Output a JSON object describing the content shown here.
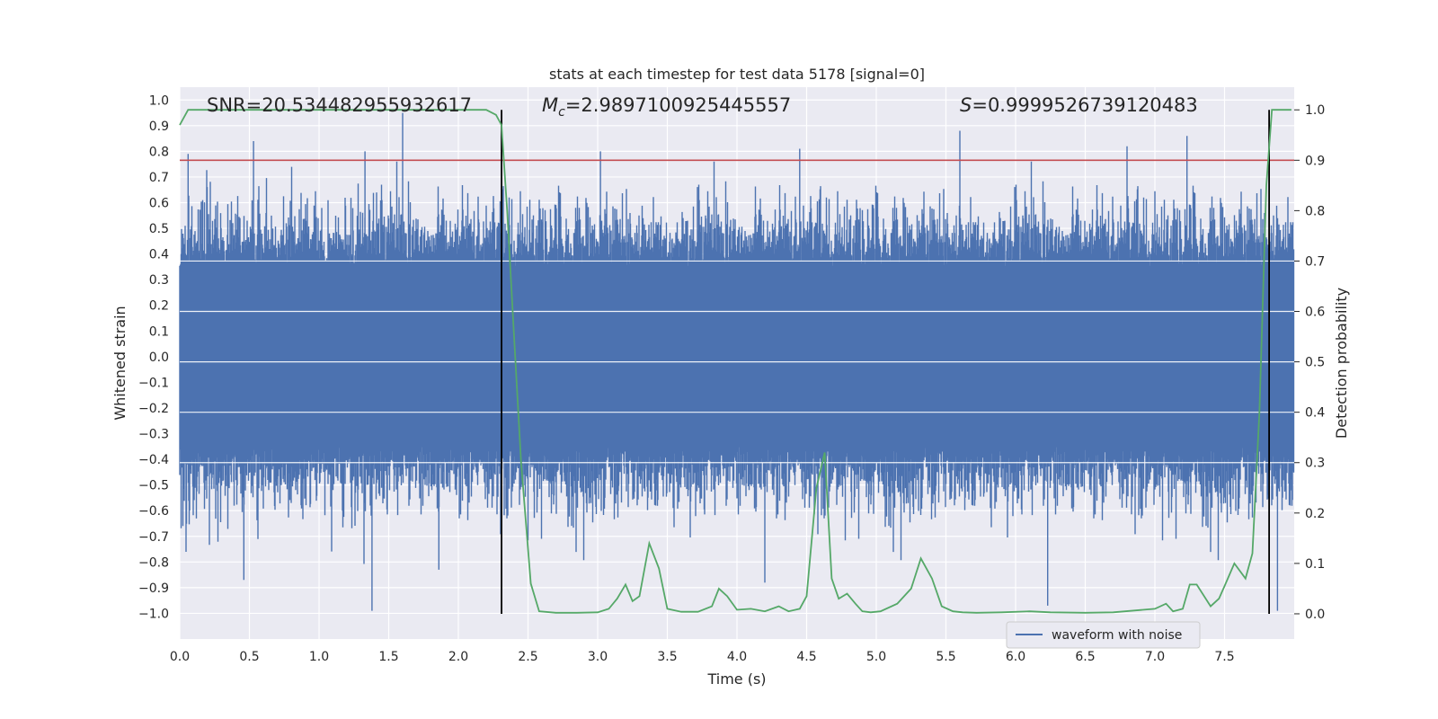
{
  "chart_data": {
    "type": "line",
    "title": "stats at each timestep for test data 5178 [signal=0]",
    "xlabel": "Time (s)",
    "ylabel_left": "Whitened strain",
    "ylabel_right": "Detection probability",
    "xlim": [
      0.0,
      8.0
    ],
    "ylim_left": [
      -1.1,
      1.05
    ],
    "ylim_right": [
      -0.05,
      1.045
    ],
    "x_ticks": [
      "0.0",
      "0.5",
      "1.0",
      "1.5",
      "2.0",
      "2.5",
      "3.0",
      "3.5",
      "4.0",
      "4.5",
      "5.0",
      "5.5",
      "6.0",
      "6.5",
      "7.0",
      "7.5"
    ],
    "y_ticks_left": [
      "1.0",
      "0.9",
      "0.8",
      "0.7",
      "0.6",
      "0.5",
      "0.4",
      "0.3",
      "0.2",
      "0.1",
      "0.0",
      "−0.1",
      "−0.2",
      "−0.3",
      "−0.4",
      "−0.5",
      "−0.6",
      "−0.7",
      "−0.8",
      "−0.9",
      "−1.0"
    ],
    "y_ticks_right": [
      "1.0",
      "0.9",
      "0.8",
      "0.7",
      "0.6",
      "0.5",
      "0.4",
      "0.3",
      "0.2",
      "0.1",
      "0.0"
    ],
    "grid": true,
    "legend": {
      "placement": "lower-right",
      "entries": [
        "waveform with noise"
      ]
    },
    "annotations": {
      "snr_label": "SNR=20.534482955932617",
      "mc_symbol": "M",
      "mc_subscript": "c",
      "mc_value": "=2.9897100925445557",
      "s_symbol": "S",
      "s_value": "=0.9999526739120483"
    },
    "threshold_right": 0.9,
    "vertical_markers": [
      2.31,
      7.82
    ],
    "series": [
      {
        "name": "waveform with noise",
        "axis": "left",
        "color": "#4c72b0",
        "kind": "dense_noise",
        "duration": 8.0,
        "core_amplitude": 0.35,
        "max_amplitude": 0.95,
        "spikes": [
          [
            0.06,
            0.79
          ],
          [
            0.53,
            0.84
          ],
          [
            1.33,
            0.8
          ],
          [
            1.6,
            0.95
          ],
          [
            3.02,
            0.8
          ],
          [
            4.45,
            0.81
          ],
          [
            5.6,
            0.88
          ],
          [
            6.8,
            0.82
          ],
          [
            7.23,
            0.86
          ],
          [
            1.38,
            -0.99
          ],
          [
            4.2,
            -0.88
          ],
          [
            6.23,
            -0.97
          ],
          [
            7.88,
            -0.99
          ],
          [
            0.46,
            -0.87
          ],
          [
            1.86,
            -0.83
          ]
        ]
      },
      {
        "name": "detection probability",
        "axis": "right",
        "color": "#55a868",
        "x": [
          0.0,
          0.06,
          0.5,
          1.0,
          1.5,
          2.0,
          2.2,
          2.27,
          2.31,
          2.35,
          2.4,
          2.45,
          2.52,
          2.58,
          2.7,
          2.85,
          3.0,
          3.08,
          3.14,
          3.2,
          3.25,
          3.3,
          3.37,
          3.44,
          3.5,
          3.6,
          3.72,
          3.82,
          3.87,
          3.93,
          4.0,
          4.1,
          4.2,
          4.3,
          4.37,
          4.45,
          4.5,
          4.57,
          4.63,
          4.68,
          4.73,
          4.79,
          4.85,
          4.9,
          4.96,
          5.03,
          5.15,
          5.25,
          5.32,
          5.4,
          5.47,
          5.55,
          5.62,
          5.72,
          5.9,
          6.1,
          6.25,
          6.5,
          6.7,
          7.0,
          7.08,
          7.13,
          7.2,
          7.25,
          7.3,
          7.4,
          7.46,
          7.5,
          7.57,
          7.65,
          7.7,
          7.75,
          7.8,
          7.84,
          7.87,
          7.9,
          7.95,
          7.98
        ],
        "y": [
          0.97,
          1.0,
          1.0,
          1.0,
          1.0,
          1.0,
          1.0,
          0.99,
          0.97,
          0.8,
          0.55,
          0.3,
          0.06,
          0.005,
          0.002,
          0.002,
          0.003,
          0.01,
          0.03,
          0.058,
          0.025,
          0.035,
          0.14,
          0.09,
          0.01,
          0.004,
          0.004,
          0.015,
          0.05,
          0.035,
          0.008,
          0.01,
          0.005,
          0.015,
          0.005,
          0.01,
          0.035,
          0.25,
          0.32,
          0.07,
          0.03,
          0.04,
          0.02,
          0.005,
          0.003,
          0.005,
          0.02,
          0.05,
          0.11,
          0.07,
          0.015,
          0.005,
          0.003,
          0.002,
          0.003,
          0.005,
          0.003,
          0.002,
          0.003,
          0.01,
          0.02,
          0.005,
          0.01,
          0.058,
          0.058,
          0.015,
          0.03,
          0.055,
          0.1,
          0.07,
          0.12,
          0.4,
          0.85,
          1.0,
          1.0,
          1.0,
          1.0,
          1.0
        ]
      }
    ]
  }
}
